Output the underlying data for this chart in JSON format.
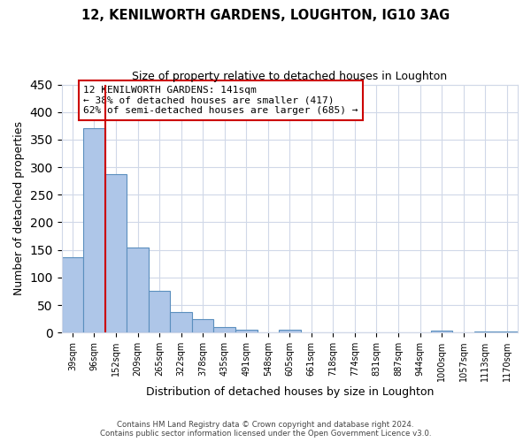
{
  "title": "12, KENILWORTH GARDENS, LOUGHTON, IG10 3AG",
  "subtitle": "Size of property relative to detached houses in Loughton",
  "xlabel": "Distribution of detached houses by size in Loughton",
  "ylabel": "Number of detached properties",
  "bar_labels": [
    "39sqm",
    "96sqm",
    "152sqm",
    "209sqm",
    "265sqm",
    "322sqm",
    "378sqm",
    "435sqm",
    "491sqm",
    "548sqm",
    "605sqm",
    "661sqm",
    "718sqm",
    "774sqm",
    "831sqm",
    "887sqm",
    "944sqm",
    "1000sqm",
    "1057sqm",
    "1113sqm",
    "1170sqm"
  ],
  "bar_values": [
    137,
    370,
    287,
    155,
    75,
    38,
    25,
    10,
    5,
    0,
    5,
    0,
    0,
    0,
    0,
    0,
    0,
    3,
    0,
    2,
    2
  ],
  "bar_color": "#aec6e8",
  "bar_edge_color": "#5b8fbe",
  "vline_x_index": 1.5,
  "vline_color": "#cc0000",
  "annotation_text": "12 KENILWORTH GARDENS: 141sqm\n← 38% of detached houses are smaller (417)\n62% of semi-detached houses are larger (685) →",
  "annotation_box_color": "#ffffff",
  "annotation_box_edge": "#cc0000",
  "ylim": [
    0,
    450
  ],
  "yticks": [
    0,
    50,
    100,
    150,
    200,
    250,
    300,
    350,
    400,
    450
  ],
  "footer_line1": "Contains HM Land Registry data © Crown copyright and database right 2024.",
  "footer_line2": "Contains public sector information licensed under the Open Government Licence v3.0.",
  "background_color": "#ffffff",
  "grid_color": "#d0d8e8"
}
